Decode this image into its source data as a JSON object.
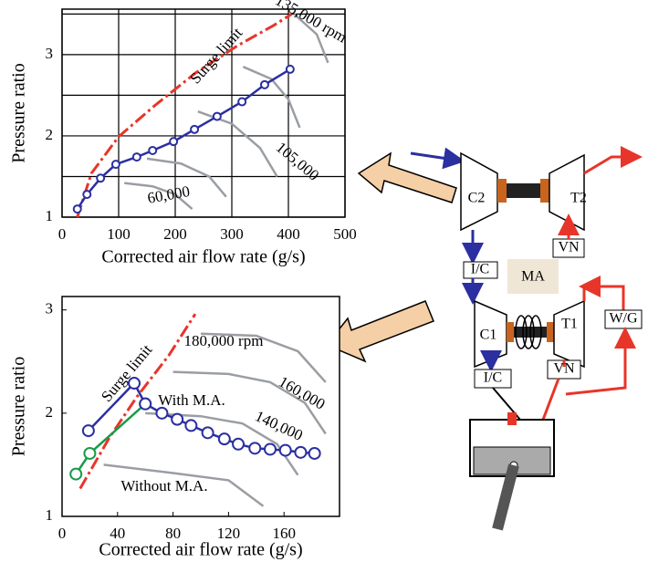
{
  "chart_data": [
    {
      "type": "line",
      "x_label": "Corrected air flow rate (g/s)",
      "y_label": "Pressure ratio",
      "xlim": [
        0,
        500
      ],
      "ylim": [
        1,
        3.56
      ],
      "xticks": [
        0,
        100,
        200,
        300,
        400,
        500
      ],
      "yticks": [
        1,
        2,
        3
      ],
      "minor_yticks": [
        1.5,
        2.5,
        3.5
      ],
      "grid": true,
      "series": [
        {
          "color": "#e8352a",
          "dash": true,
          "markers": false,
          "x": [
            27,
            52,
            100,
            165,
            237,
            310,
            374,
            406
          ],
          "y": [
            1.0,
            1.54,
            1.99,
            2.38,
            2.78,
            3.11,
            3.36,
            3.5
          ]
        },
        {
          "color": "#2b2fa0",
          "dash": false,
          "markers": true,
          "x": [
            27,
            44,
            68,
            95,
            132,
            160,
            197,
            234,
            274,
            318,
            358,
            403
          ],
          "y": [
            1.1,
            1.28,
            1.48,
            1.65,
            1.74,
            1.82,
            1.93,
            2.08,
            2.24,
            2.42,
            2.63,
            2.82
          ]
        }
      ],
      "speed_lines": [
        {
          "label": "60,000",
          "x": [
            110,
            160,
            200,
            230
          ],
          "y": [
            1.42,
            1.38,
            1.28,
            1.1
          ]
        },
        {
          "x": [
            150,
            210,
            260,
            290
          ],
          "y": [
            1.72,
            1.66,
            1.5,
            1.25
          ]
        },
        {
          "label": "105,000",
          "x": [
            240,
            300,
            350,
            380
          ],
          "y": [
            2.3,
            2.15,
            1.85,
            1.5
          ]
        },
        {
          "x": [
            320,
            370,
            400,
            420
          ],
          "y": [
            2.85,
            2.7,
            2.45,
            2.1
          ]
        },
        {
          "label": "135,000 rpm",
          "x": [
            410,
            450,
            470
          ],
          "y": [
            3.5,
            3.25,
            2.9
          ]
        }
      ],
      "annotations": [
        {
          "text": "Surge limit",
          "color": "#e8352a"
        }
      ]
    },
    {
      "type": "line",
      "x_label": "Corrected air flow rate (g/s)",
      "y_label": "Pressure ratio",
      "xlim": [
        0,
        200
      ],
      "ylim": [
        1,
        3.13
      ],
      "xticks": [
        0,
        40,
        80,
        120,
        160
      ],
      "yticks": [
        1,
        2,
        3
      ],
      "grid": false,
      "series": [
        {
          "color": "#e8352a",
          "dash": true,
          "markers": false,
          "x": [
            13,
            34,
            54,
            77,
            96
          ],
          "y": [
            1.27,
            1.76,
            2.16,
            2.56,
            2.96
          ]
        },
        {
          "color": "#1a9a4a",
          "dash": false,
          "markers": true,
          "x": [
            10,
            20,
            60
          ],
          "y": [
            1.41,
            1.61,
            2.09
          ]
        },
        {
          "color": "#2b2fa0",
          "dash": false,
          "markers": true,
          "x": [
            19,
            52,
            60,
            72,
            83,
            93,
            105,
            117,
            127,
            139,
            150,
            161,
            172,
            182
          ],
          "y": [
            1.83,
            2.29,
            2.09,
            2.0,
            1.94,
            1.88,
            1.81,
            1.75,
            1.7,
            1.66,
            1.65,
            1.64,
            1.62,
            1.61
          ]
        }
      ],
      "speed_lines": [
        {
          "label": "180,000 rpm",
          "x": [
            100,
            140,
            170,
            190
          ],
          "y": [
            2.77,
            2.75,
            2.6,
            2.3
          ]
        },
        {
          "label": "160,000",
          "x": [
            80,
            120,
            150,
            175,
            190
          ],
          "y": [
            2.4,
            2.38,
            2.3,
            2.1,
            1.8
          ]
        },
        {
          "label": "140,000",
          "x": [
            60,
            100,
            130,
            155,
            170
          ],
          "y": [
            2.0,
            1.97,
            1.9,
            1.7,
            1.4
          ]
        },
        {
          "x": [
            30,
            80,
            120,
            145
          ],
          "y": [
            1.5,
            1.42,
            1.35,
            1.1
          ]
        }
      ],
      "annotations": [
        {
          "text": "Surge limit",
          "color": "#e8352a"
        },
        {
          "text": "With M.A.",
          "color": "#2b2fa0"
        },
        {
          "text": "Without M.A.",
          "color": "#1a9a4a"
        }
      ]
    }
  ],
  "diagram": {
    "labels": [
      "C2",
      "T2",
      "I/C",
      "MA",
      "C1",
      "T1",
      "VN",
      "W/G",
      "I/C",
      "VN"
    ]
  }
}
